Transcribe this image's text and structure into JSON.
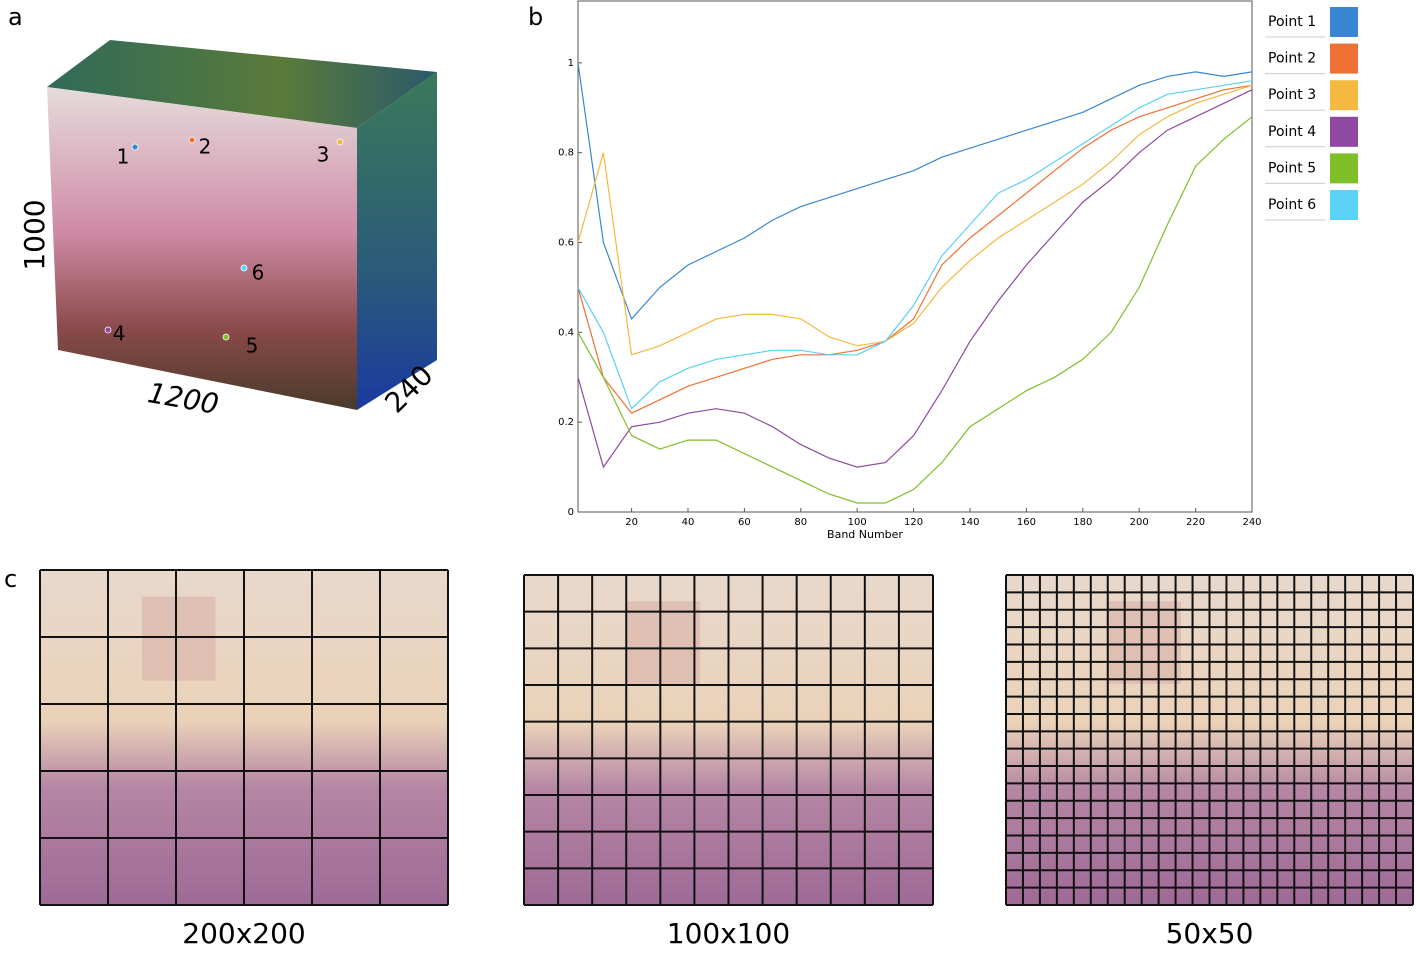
{
  "panels": {
    "a": {
      "label": "a",
      "dims": [
        1000,
        1200,
        240
      ],
      "points": [
        "1",
        "2",
        "3",
        "4",
        "5",
        "6"
      ]
    },
    "b": {
      "label": "b"
    },
    "c": {
      "label": "c",
      "captions": [
        "200x200",
        "100x100",
        "50x50"
      ]
    }
  },
  "chart_data": {
    "type": "line",
    "xlabel": "Band Number",
    "x": [
      1,
      10,
      20,
      30,
      40,
      50,
      60,
      70,
      80,
      90,
      100,
      110,
      120,
      130,
      140,
      150,
      160,
      170,
      180,
      190,
      200,
      210,
      220,
      230,
      240
    ],
    "series": [
      {
        "name": "Point 1",
        "color": "#3a86d2",
        "values": [
          1.0,
          0.6,
          0.43,
          0.5,
          0.55,
          0.58,
          0.61,
          0.65,
          0.68,
          0.7,
          0.72,
          0.74,
          0.76,
          0.79,
          0.81,
          0.83,
          0.85,
          0.87,
          0.89,
          0.92,
          0.95,
          0.97,
          0.98,
          0.97,
          0.98
        ]
      },
      {
        "name": "Point 2",
        "color": "#ef7033",
        "values": [
          0.5,
          0.3,
          0.22,
          0.25,
          0.28,
          0.3,
          0.32,
          0.34,
          0.35,
          0.35,
          0.36,
          0.38,
          0.43,
          0.55,
          0.61,
          0.66,
          0.71,
          0.76,
          0.81,
          0.85,
          0.88,
          0.9,
          0.92,
          0.94,
          0.95
        ]
      },
      {
        "name": "Point 3",
        "color": "#f5b841",
        "values": [
          0.6,
          0.8,
          0.35,
          0.37,
          0.4,
          0.43,
          0.44,
          0.44,
          0.43,
          0.39,
          0.37,
          0.38,
          0.42,
          0.5,
          0.56,
          0.61,
          0.65,
          0.69,
          0.73,
          0.78,
          0.84,
          0.88,
          0.91,
          0.93,
          0.95
        ]
      },
      {
        "name": "Point 4",
        "color": "#8e4aa0",
        "values": [
          0.3,
          0.1,
          0.19,
          0.2,
          0.22,
          0.23,
          0.22,
          0.19,
          0.15,
          0.12,
          0.1,
          0.11,
          0.17,
          0.27,
          0.38,
          0.47,
          0.55,
          0.62,
          0.69,
          0.74,
          0.8,
          0.85,
          0.88,
          0.91,
          0.94
        ]
      },
      {
        "name": "Point 5",
        "color": "#7fbf2a",
        "values": [
          0.4,
          0.3,
          0.17,
          0.14,
          0.16,
          0.16,
          0.13,
          0.1,
          0.07,
          0.04,
          0.02,
          0.02,
          0.05,
          0.11,
          0.19,
          0.23,
          0.27,
          0.3,
          0.34,
          0.4,
          0.5,
          0.64,
          0.77,
          0.83,
          0.88
        ]
      },
      {
        "name": "Point 6",
        "color": "#5ad1f5",
        "values": [
          0.5,
          0.4,
          0.23,
          0.29,
          0.32,
          0.34,
          0.35,
          0.36,
          0.36,
          0.35,
          0.35,
          0.38,
          0.46,
          0.57,
          0.64,
          0.71,
          0.74,
          0.78,
          0.82,
          0.86,
          0.9,
          0.93,
          0.94,
          0.95,
          0.96
        ]
      }
    ],
    "xlim": [
      1,
      240
    ],
    "xticks": [
      20,
      40,
      60,
      80,
      100,
      120,
      140,
      160,
      180,
      200,
      220,
      240
    ],
    "ylim": [
      0,
      1.14
    ],
    "yticks": [
      0,
      0.2,
      0.4,
      0.6,
      0.8,
      1
    ],
    "legend": "right"
  }
}
